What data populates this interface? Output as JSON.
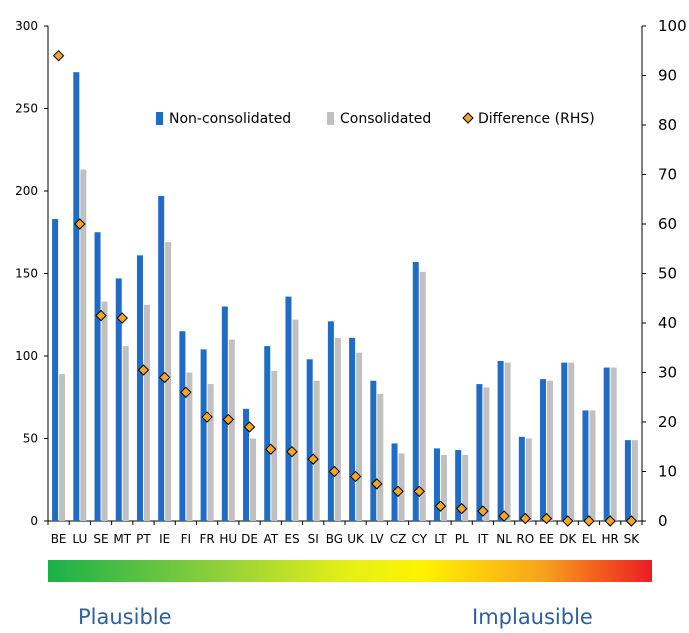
{
  "chart_data": {
    "type": "bar",
    "categories": [
      "BE",
      "LU",
      "SE",
      "MT",
      "PT",
      "IE",
      "FI",
      "FR",
      "HU",
      "DE",
      "AT",
      "ES",
      "SI",
      "BG",
      "UK",
      "LV",
      "CZ",
      "CY",
      "LT",
      "PL",
      "IT",
      "NL",
      "RO",
      "EE",
      "DK",
      "EL",
      "HR",
      "SK"
    ],
    "series": [
      {
        "name": "Non-consolidated",
        "axis": "left",
        "kind": "bar",
        "color": "#1f6bc5",
        "values": [
          183,
          272,
          175,
          147,
          161,
          197,
          115,
          104,
          130,
          68,
          106,
          136,
          98,
          121,
          111,
          85,
          47,
          157,
          44,
          43,
          83,
          97,
          51,
          86,
          96,
          67,
          93,
          49
        ]
      },
      {
        "name": "Consolidated",
        "axis": "left",
        "kind": "bar",
        "color": "#c0c0c0",
        "values": [
          89,
          213,
          133,
          106,
          131,
          169,
          90,
          83,
          110,
          50,
          91,
          122,
          85,
          111,
          102,
          77,
          41,
          151,
          40,
          40,
          81,
          96,
          50,
          85,
          96,
          67,
          93,
          49
        ]
      },
      {
        "name": "Difference (RHS)",
        "axis": "right",
        "kind": "marker",
        "color": "#f5a623",
        "values": [
          94,
          60,
          41.5,
          41,
          30.5,
          29,
          26,
          21,
          20.5,
          19,
          14.5,
          14,
          12.5,
          10,
          9,
          7.5,
          6,
          6,
          3,
          2.5,
          2,
          1,
          0.5,
          0.5,
          0,
          0,
          0,
          0
        ]
      }
    ],
    "left_axis": {
      "min": 0,
      "max": 300,
      "ticks": [
        "0",
        "50",
        "100",
        "150",
        "200",
        "250",
        "300"
      ]
    },
    "right_axis": {
      "min": 0,
      "max": 100,
      "ticks": [
        "0",
        "10",
        "20",
        "30",
        "40",
        "50",
        "60",
        "70",
        "80",
        "90",
        "100"
      ]
    },
    "legend_position": "top-center",
    "grid": false,
    "scale": {
      "left_label": "Plausible",
      "right_label": "Implausible"
    }
  }
}
